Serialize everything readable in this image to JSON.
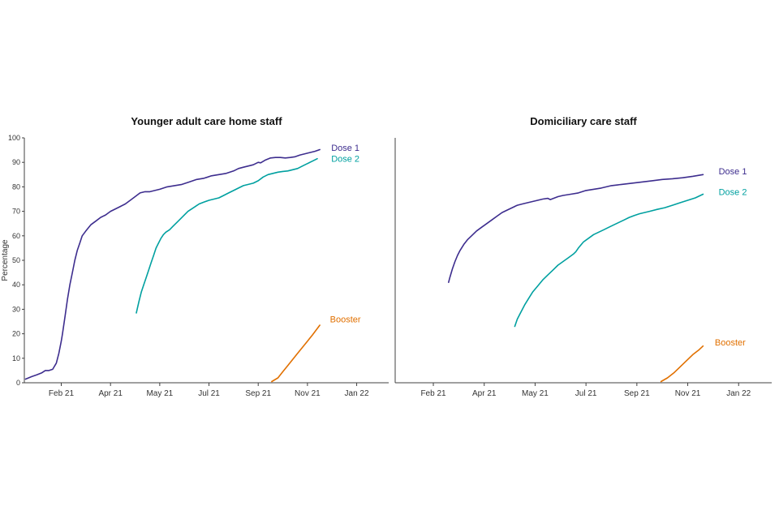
{
  "figure": {
    "background": "#ffffff"
  },
  "chart_data": [
    {
      "type": "line",
      "title": "Younger adult care home staff",
      "ylabel": "Percentage",
      "show_y_tick_labels": true,
      "xlim": [
        -0.5,
        14.3
      ],
      "ylim": [
        0,
        100
      ],
      "x_ticks": [
        {
          "pos": 1,
          "label": "Feb 21"
        },
        {
          "pos": 3,
          "label": "Apr 21"
        },
        {
          "pos": 5,
          "label": "May 21"
        },
        {
          "pos": 7,
          "label": "Jul 21"
        },
        {
          "pos": 9,
          "label": "Sep 21"
        },
        {
          "pos": 11,
          "label": "Nov 21"
        },
        {
          "pos": 13,
          "label": "Jan 22"
        }
      ],
      "y_ticks": [
        0,
        10,
        20,
        30,
        40,
        50,
        60,
        70,
        80,
        90,
        100
      ],
      "series": [
        {
          "id": "dose-1",
          "name": "Dose 1",
          "color": "#3d2d8e",
          "label_pos": {
            "x": 11.9,
            "y": 96
          },
          "points": [
            [
              -0.45,
              1.5
            ],
            [
              -0.2,
              2.5
            ],
            [
              0.0,
              3.2
            ],
            [
              0.2,
              4
            ],
            [
              0.35,
              5
            ],
            [
              0.5,
              5
            ],
            [
              0.65,
              5.5
            ],
            [
              0.8,
              8
            ],
            [
              0.9,
              12
            ],
            [
              1.0,
              17
            ],
            [
              1.05,
              20
            ],
            [
              1.15,
              27
            ],
            [
              1.25,
              34
            ],
            [
              1.35,
              40
            ],
            [
              1.45,
              45
            ],
            [
              1.55,
              50
            ],
            [
              1.65,
              54
            ],
            [
              1.75,
              57
            ],
            [
              1.85,
              60
            ],
            [
              2.0,
              62
            ],
            [
              2.2,
              64.5
            ],
            [
              2.4,
              66
            ],
            [
              2.6,
              67.5
            ],
            [
              2.8,
              68.5
            ],
            [
              3.0,
              70
            ],
            [
              3.2,
              71
            ],
            [
              3.4,
              72
            ],
            [
              3.6,
              73
            ],
            [
              3.8,
              74.5
            ],
            [
              4.0,
              76
            ],
            [
              4.2,
              77.5
            ],
            [
              4.4,
              78
            ],
            [
              4.6,
              78
            ],
            [
              4.8,
              78.5
            ],
            [
              5.0,
              79
            ],
            [
              5.3,
              80
            ],
            [
              5.6,
              80.5
            ],
            [
              5.9,
              81
            ],
            [
              6.2,
              82
            ],
            [
              6.5,
              83
            ],
            [
              6.8,
              83.5
            ],
            [
              7.1,
              84.5
            ],
            [
              7.4,
              85
            ],
            [
              7.7,
              85.5
            ],
            [
              8.0,
              86.5
            ],
            [
              8.2,
              87.5
            ],
            [
              8.4,
              88
            ],
            [
              8.6,
              88.5
            ],
            [
              8.8,
              89
            ],
            [
              9.0,
              90
            ],
            [
              9.1,
              89.8
            ],
            [
              9.3,
              91
            ],
            [
              9.5,
              91.8
            ],
            [
              9.7,
              92
            ],
            [
              9.9,
              92
            ],
            [
              10.1,
              91.8
            ],
            [
              10.3,
              92
            ],
            [
              10.5,
              92.3
            ],
            [
              10.7,
              93
            ],
            [
              10.9,
              93.5
            ],
            [
              11.1,
              94
            ],
            [
              11.3,
              94.5
            ],
            [
              11.5,
              95.2
            ]
          ]
        },
        {
          "id": "dose-2",
          "name": "Dose 2",
          "color": "#00a0a0",
          "label_pos": {
            "x": 11.9,
            "y": 91.5
          },
          "points": [
            [
              4.05,
              28.5
            ],
            [
              4.15,
              33
            ],
            [
              4.25,
              37
            ],
            [
              4.35,
              40
            ],
            [
              4.45,
              43
            ],
            [
              4.55,
              46
            ],
            [
              4.65,
              49
            ],
            [
              4.75,
              52
            ],
            [
              4.85,
              55
            ],
            [
              4.95,
              57
            ],
            [
              5.05,
              59
            ],
            [
              5.15,
              60.5
            ],
            [
              5.25,
              61.5
            ],
            [
              5.4,
              62.5
            ],
            [
              5.55,
              64
            ],
            [
              5.7,
              65.5
            ],
            [
              5.85,
              67
            ],
            [
              6.0,
              68.5
            ],
            [
              6.15,
              70
            ],
            [
              6.3,
              71
            ],
            [
              6.45,
              72
            ],
            [
              6.6,
              73
            ],
            [
              6.8,
              73.8
            ],
            [
              7.0,
              74.5
            ],
            [
              7.2,
              75
            ],
            [
              7.4,
              75.5
            ],
            [
              7.6,
              76.5
            ],
            [
              7.8,
              77.5
            ],
            [
              8.0,
              78.5
            ],
            [
              8.2,
              79.5
            ],
            [
              8.4,
              80.5
            ],
            [
              8.6,
              81
            ],
            [
              8.8,
              81.5
            ],
            [
              9.0,
              82.5
            ],
            [
              9.2,
              84
            ],
            [
              9.4,
              85
            ],
            [
              9.6,
              85.5
            ],
            [
              9.8,
              86
            ],
            [
              10.0,
              86.3
            ],
            [
              10.2,
              86.5
            ],
            [
              10.4,
              87
            ],
            [
              10.6,
              87.5
            ],
            [
              10.8,
              88.5
            ],
            [
              11.0,
              89.5
            ],
            [
              11.2,
              90.5
            ],
            [
              11.4,
              91.5
            ]
          ]
        },
        {
          "id": "booster",
          "name": "Booster",
          "color": "#e17000",
          "label_pos": {
            "x": 11.85,
            "y": 26
          },
          "points": [
            [
              9.55,
              0.5
            ],
            [
              9.8,
              2
            ],
            [
              10.0,
              4.5
            ],
            [
              10.2,
              7
            ],
            [
              10.4,
              9.5
            ],
            [
              10.6,
              12
            ],
            [
              10.8,
              14.5
            ],
            [
              11.0,
              17
            ],
            [
              11.2,
              19.5
            ],
            [
              11.35,
              21.5
            ],
            [
              11.5,
              23.5
            ]
          ]
        }
      ]
    },
    {
      "type": "line",
      "title": "Domiciliary care staff",
      "ylabel": "",
      "show_y_tick_labels": false,
      "xlim": [
        -0.5,
        14.3
      ],
      "ylim": [
        0,
        100
      ],
      "x_ticks": [
        {
          "pos": 1,
          "label": "Feb 21"
        },
        {
          "pos": 3,
          "label": "Apr 21"
        },
        {
          "pos": 5,
          "label": "May 21"
        },
        {
          "pos": 7,
          "label": "Jul 21"
        },
        {
          "pos": 9,
          "label": "Sep 21"
        },
        {
          "pos": 11,
          "label": "Nov 21"
        },
        {
          "pos": 13,
          "label": "Jan 22"
        }
      ],
      "y_ticks": [
        0,
        10,
        20,
        30,
        40,
        50,
        60,
        70,
        80,
        90,
        100
      ],
      "series": [
        {
          "id": "dose-1",
          "name": "Dose 1",
          "color": "#3d2d8e",
          "label_pos": {
            "x": 12.15,
            "y": 86.5
          },
          "points": [
            [
              1.6,
              41
            ],
            [
              1.65,
              43
            ],
            [
              1.75,
              46.5
            ],
            [
              1.85,
              49.5
            ],
            [
              1.95,
              52
            ],
            [
              2.05,
              54
            ],
            [
              2.2,
              56.5
            ],
            [
              2.35,
              58.5
            ],
            [
              2.5,
              60
            ],
            [
              2.7,
              62
            ],
            [
              2.9,
              63.5
            ],
            [
              3.1,
              65
            ],
            [
              3.3,
              66.5
            ],
            [
              3.5,
              68
            ],
            [
              3.7,
              69.5
            ],
            [
              3.9,
              70.5
            ],
            [
              4.1,
              71.5
            ],
            [
              4.3,
              72.5
            ],
            [
              4.5,
              73
            ],
            [
              4.7,
              73.5
            ],
            [
              4.9,
              74
            ],
            [
              5.1,
              74.5
            ],
            [
              5.3,
              75
            ],
            [
              5.5,
              75.3
            ],
            [
              5.6,
              74.8
            ],
            [
              5.7,
              75.2
            ],
            [
              5.9,
              76
            ],
            [
              6.1,
              76.5
            ],
            [
              6.4,
              77
            ],
            [
              6.7,
              77.5
            ],
            [
              7.0,
              78.5
            ],
            [
              7.3,
              79
            ],
            [
              7.6,
              79.5
            ],
            [
              8.0,
              80.5
            ],
            [
              8.4,
              81
            ],
            [
              8.8,
              81.5
            ],
            [
              9.2,
              82
            ],
            [
              9.6,
              82.5
            ],
            [
              10.0,
              83
            ],
            [
              10.4,
              83.3
            ],
            [
              10.8,
              83.7
            ],
            [
              11.2,
              84.3
            ],
            [
              11.6,
              85
            ]
          ]
        },
        {
          "id": "dose-2",
          "name": "Dose 2",
          "color": "#00a0a0",
          "label_pos": {
            "x": 12.15,
            "y": 78
          },
          "points": [
            [
              4.2,
              23
            ],
            [
              4.3,
              26
            ],
            [
              4.45,
              29
            ],
            [
              4.6,
              32
            ],
            [
              4.75,
              34.5
            ],
            [
              4.9,
              37
            ],
            [
              5.1,
              39.5
            ],
            [
              5.3,
              42
            ],
            [
              5.5,
              44
            ],
            [
              5.7,
              46
            ],
            [
              5.9,
              48
            ],
            [
              6.1,
              49.5
            ],
            [
              6.3,
              51
            ],
            [
              6.5,
              52.5
            ],
            [
              6.6,
              53.5
            ],
            [
              6.7,
              55
            ],
            [
              6.9,
              57.5
            ],
            [
              7.1,
              59
            ],
            [
              7.3,
              60.5
            ],
            [
              7.5,
              61.5
            ],
            [
              7.7,
              62.5
            ],
            [
              7.9,
              63.5
            ],
            [
              8.1,
              64.5
            ],
            [
              8.3,
              65.5
            ],
            [
              8.5,
              66.5
            ],
            [
              8.7,
              67.5
            ],
            [
              8.9,
              68.3
            ],
            [
              9.1,
              69
            ],
            [
              9.3,
              69.5
            ],
            [
              9.5,
              70
            ],
            [
              9.8,
              70.8
            ],
            [
              10.1,
              71.5
            ],
            [
              10.4,
              72.5
            ],
            [
              10.7,
              73.5
            ],
            [
              11.0,
              74.5
            ],
            [
              11.3,
              75.5
            ],
            [
              11.6,
              77
            ]
          ]
        },
        {
          "id": "booster",
          "name": "Booster",
          "color": "#e17000",
          "label_pos": {
            "x": 12.0,
            "y": 16.5
          },
          "points": [
            [
              9.95,
              0.5
            ],
            [
              10.2,
              2
            ],
            [
              10.45,
              4
            ],
            [
              10.7,
              6.5
            ],
            [
              10.95,
              9
            ],
            [
              11.2,
              11.5
            ],
            [
              11.45,
              13.5
            ],
            [
              11.6,
              15
            ]
          ]
        }
      ]
    }
  ]
}
